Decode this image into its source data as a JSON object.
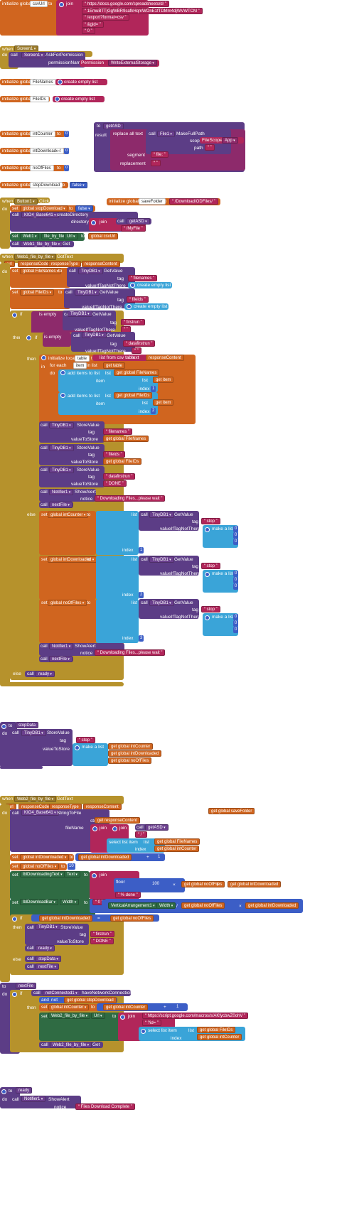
{
  "canvas_size": "474x1717",
  "blocks": {
    "csvurl_block": {
      "kw_init": "initialize global",
      "name": "csvUrl",
      "kw_to": "to",
      "kw_join": "join",
      "parts": [
        "https://docs.google.com/spreadsheets/d/",
        "1EmuBTTjGgWBR9safkHqmWOnE1fTDMm4djWVWTCM",
        "/export?format=csv",
        "&gid=",
        "0"
      ]
    },
    "screen1_init": {
      "kw_when": "when",
      "component": "Screen1",
      "event": "Initialize",
      "kw_do": "do",
      "kw_call": "call",
      "target": "Screen1",
      "method": "AskForPermission",
      "param_label": "permissionName",
      "kw_permission": "Permission",
      "permission": "WriteExternalStorage"
    },
    "filenames_init": {
      "kw": "initialize global",
      "name": "FileNames",
      "kw_to": "to",
      "value": "create empty list"
    },
    "fileids_init": {
      "kw": "initialize global",
      "name": "FileIDs",
      "kw_to": "to",
      "value": "create empty list"
    },
    "to_getasd": {
      "kw_to": "to",
      "name": "getASD",
      "kw_result": "result",
      "replace_label": "replace all text",
      "kw_call": "call",
      "file": "File1",
      "method": "MakeFullPath",
      "scope_label": "scope",
      "scope_kw": "FileScope",
      "scope_value": "App",
      "path_label": "path",
      "path_value": "",
      "segment_label": "segment",
      "segment_value": "file:",
      "replacement_label": "replacement",
      "replacement_value": ""
    },
    "intcounter_init": {
      "kw": "initialize global",
      "name": "intCounter",
      "kw_to": "to",
      "value": "0"
    },
    "intdownloaded_init": {
      "kw": "initialize global",
      "name": "intDownloaded",
      "kw_to": "to",
      "value": "0"
    },
    "nooffiles_init": {
      "kw": "initialize global",
      "name": "noOfFiles",
      "kw_to": "to",
      "value": "0"
    },
    "stopdownload_init": {
      "kw": "initialize global",
      "name": "stopDownload",
      "kw_to": "to",
      "value": "false"
    },
    "savefolder_init": {
      "kw": "initialize global",
      "name": "saveFolder",
      "kw_to": "to",
      "value": "/Download/ODFiles/"
    },
    "button1_click": {
      "kw_when": "when",
      "component": "Button1",
      "event": "Click",
      "kw_do": "do",
      "set1_var": "global stopDownload",
      "set1_val": "false",
      "call_kw": "call",
      "call_target": "KIO4_Base641",
      "call_method": "createDirectory",
      "dir_label": "directory",
      "dir_join": "join",
      "dir_call": "call",
      "dir_fn": "getASD",
      "dir_suffix": "/MyFile",
      "set2_target": "Web1",
      "set2_prop": "file_by_file",
      "set2_field": "Url",
      "set2_val": "global csvUrl",
      "call2_target": "Web1_file_by_file",
      "call2_method": "Get"
    },
    "web1_gottext": {
      "kw_when": "when",
      "component": "Web1_file_by_file",
      "event": "GotText",
      "params": [
        "url",
        "responseCode",
        "responseType",
        "responseContent"
      ],
      "set_filenames": "global FileNames",
      "tinydb_get": "TinyDB1",
      "get_value": "GetValue",
      "tag_label": "tag",
      "tag1": "filenames",
      "ifnot_label": "valueIfTagNotThere",
      "create_empty": "create empty list",
      "set_fileids": "global FileIDs",
      "tag2": "fileids",
      "if_label": "if",
      "is_empty": "is empty",
      "tag3": "firstrun",
      "tag4": "datafirstrun",
      "then_label": "then",
      "init_local": "initialize local",
      "local_name": "table",
      "to_label": "to",
      "list_from_csv": "list from csv table",
      "text_label": "text",
      "response_content": "responseContent",
      "in_label": "in",
      "for_each": "for each",
      "item_label": "item",
      "in_list": "in list",
      "get_table": "table",
      "add_items": "add items to list",
      "list_label": "list",
      "global_filenames": "global FileNames",
      "item_field": "item",
      "select_list": "select list item",
      "index_label": "index",
      "idx1": "1",
      "global_fileids": "global FileIDs",
      "idx2": "2",
      "store_value": "StoreValue",
      "value_to_store": "valueToStore",
      "tag5": "filenames",
      "tag6": "fileids",
      "tag7": "datafirstrun",
      "done_val": "DONE",
      "notifier": "Notifier1",
      "show_alert": "ShowAlert",
      "notice_label": "notice",
      "notice_text": "Downloading Files...please wait",
      "next_file": "nextFile",
      "else_label": "else",
      "set_intcounter": "global intCounter",
      "stop_tag": "stop",
      "make_list": "make a list",
      "zero": "0",
      "set_intdownloaded": "global intDownloaded",
      "set_nooffiles": "global noOfFiles",
      "idx3": "3",
      "notice_text2": "Downloading Files...please wait",
      "ready": "ready",
      "get_label": "get",
      "set_label": "set"
    },
    "stopdata": {
      "kw_to": "to",
      "name": "stopData",
      "kw_do": "do",
      "kw_call": "call",
      "target": "TinyDB1",
      "method": "StoreValue",
      "tag_label": "tag",
      "tag": "stop",
      "vts_label": "valueToStore",
      "make_list": "make a list",
      "items": [
        "global intCounter",
        "global intDownloaded",
        "global noOfFiles"
      ]
    },
    "web2_gottext": {
      "kw_when": "when",
      "component": "Web2_file_by_file",
      "event": "GotText",
      "params": [
        "url",
        "responseCode",
        "responseType",
        "responseContent"
      ],
      "savefolder_get": "global saveFolder",
      "call_target": "KIO4_Base641",
      "call_method": "StringToFile",
      "string_label": "string",
      "response": "responseContent",
      "filename_label": "fileName",
      "join": "join",
      "getasd": "getASD",
      "slash": "/",
      "select": "select list item",
      "list_label": "list",
      "global_filenames": "global FileNames",
      "index_label": "index",
      "intcounter": "global intCounter",
      "set_intdownloaded": "global intDownloaded",
      "plus_one": "1",
      "set_nooffiles_to": "global noOfFiles",
      "ten": "10",
      "label_set": "lblDownloadingText",
      "text_prop": "Text",
      "join2": "join",
      "floor": "floor",
      "hundred": "100",
      "divide_sym": "/",
      "times_sym": "×",
      "pct": "% done",
      "zero_str": "0",
      "bar_set": "lblDownloadBar",
      "width_prop": "Width",
      "vert": "VerticalArrangement1",
      "width2": "Width",
      "if_label": "if",
      "eq_sym": "=",
      "store": "StoreValue",
      "tag_label": "tag",
      "firstrun": "firstrun",
      "vts": "valueToStore",
      "done": "DONE",
      "ready": "ready",
      "else_label": "else",
      "stopdata": "stopData",
      "nextfile": "nextFile"
    },
    "nextfile": {
      "kw_to": "to",
      "name": "nextFile",
      "kw_do": "do",
      "if_label": "if",
      "call_kw": "call",
      "net": "netConnected1",
      "method": "haveNetworkConnection",
      "and_label": "and",
      "not_label": "not",
      "stop_var": "global stopDownload",
      "then_label": "then",
      "set_label": "set",
      "intcounter": "global intCounter",
      "plus_one": "1",
      "web2": "Web2_file_by_file",
      "url_label": "Url",
      "url": "https://script.google.com/macros/s/AKfycbwZ0ohV",
      "id_label": "?id=",
      "select": "select list item",
      "list_label": "list",
      "fileids": "global FileIDs",
      "index_label": "index",
      "intcounter2": "global intCounter",
      "get_call": "Web2_file_by_file",
      "get_method": "Get"
    },
    "ready": {
      "kw_to": "to",
      "name": "ready",
      "kw_do": "do",
      "call_kw": "call",
      "target": "Notifier1",
      "method": "ShowAlert",
      "notice_label": "notice",
      "notice": "Files Download Complete"
    }
  },
  "colors": {
    "orange": "#d0651f",
    "pink": "#b1265a",
    "magenta": "#8d2a6b",
    "purple": "#5c3d86",
    "olive": "#9a7a2b",
    "lightblue": "#3aa4d8",
    "darkgreen": "#2f6b43",
    "blue": "#3c5ec6"
  }
}
